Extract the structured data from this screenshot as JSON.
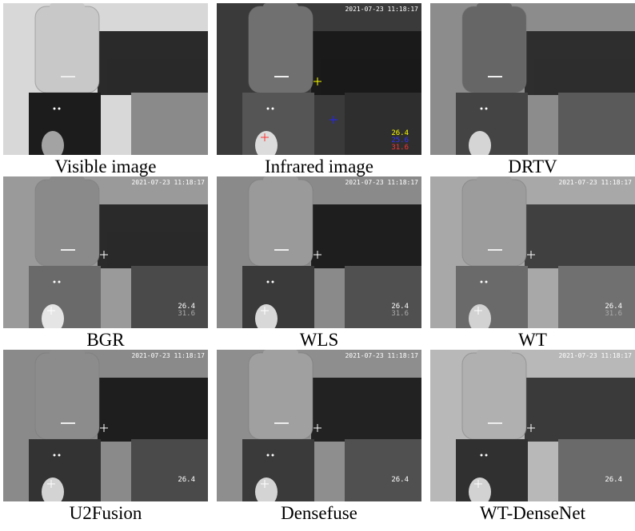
{
  "panels": [
    {
      "caption": "Visible image"
    },
    {
      "caption": "Infrared image",
      "timestamp": "2021-07-23 11:18:17",
      "readings": [
        "26.4",
        "25.6",
        "31.6"
      ]
    },
    {
      "caption": "DRTV"
    },
    {
      "caption": "BGR",
      "timestamp": "2021-07-23 11:18:17",
      "readings": [
        "26.4",
        "31.6"
      ]
    },
    {
      "caption": "WLS",
      "timestamp": "2021-07-23 11:18:17",
      "readings": [
        "26.4",
        "31.6"
      ]
    },
    {
      "caption": "WT",
      "timestamp": "2021-07-23 11:18:17",
      "readings": [
        "26.4",
        "31.6"
      ]
    },
    {
      "caption": "U2Fusion",
      "timestamp": "2021-07-23 11:18:17",
      "readings": [
        "26.4"
      ]
    },
    {
      "caption": "Densefuse",
      "timestamp": "2021-07-23 11:18:17",
      "readings": [
        "26.4"
      ]
    },
    {
      "caption": "WT-DenseNet",
      "timestamp": "2021-07-23 11:18:17",
      "readings": [
        "26.4"
      ]
    }
  ]
}
